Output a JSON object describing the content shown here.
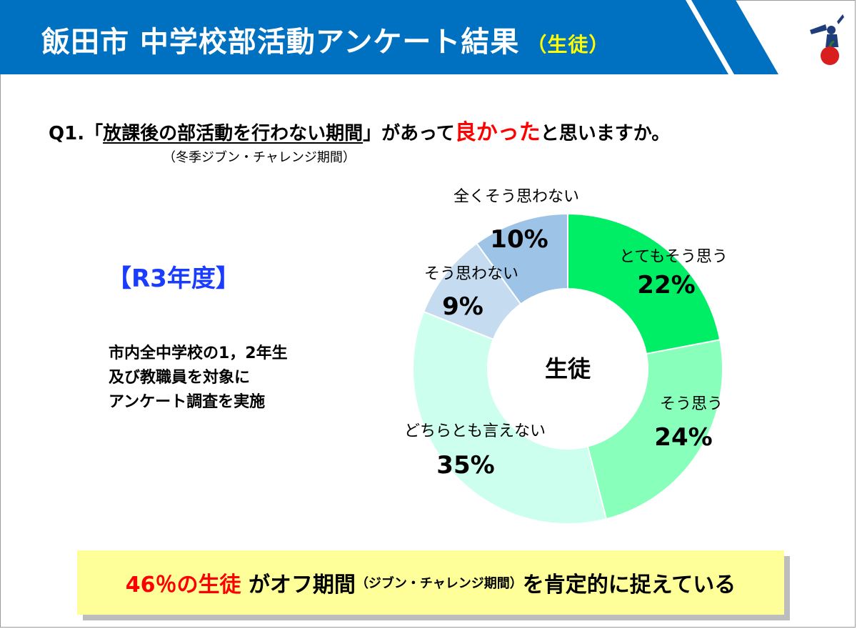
{
  "header": {
    "title": "飯田市 中学校部活動アンケート結果",
    "subtitle": "（生徒）",
    "colors": {
      "band": "#0070c0",
      "stripe": "#0070c0",
      "subtitle": "#ffff00"
    }
  },
  "logo": {
    "icon": "mascot-apple-icon"
  },
  "question": {
    "prefix": "Q1.「",
    "underlined": "放課後の部活動を行わない期間",
    "mid": "」があって",
    "highlight": "良かった",
    "suffix": "と思いますか。",
    "note": "（冬季ジブン・チャレンジ期間）"
  },
  "year_label": "【R3年度】",
  "description": {
    "line1": "市内全中学校の1，2年生",
    "line2": "及び教職員を対象に",
    "line3": "アンケート調査を実施"
  },
  "chart_data": {
    "type": "pie",
    "donut": true,
    "center_label": "生徒",
    "start": "top, clockwise",
    "categories": [
      "とてもそう思う",
      "そう思う",
      "どちらとも言えない",
      "そう思わない",
      "全くそう思わない"
    ],
    "values": [
      22,
      24,
      35,
      9,
      10
    ],
    "value_labels": [
      "22%",
      "24%",
      "35%",
      "9%",
      "10%"
    ],
    "colors": [
      "#00ee66",
      "#88ffbb",
      "#ccffee",
      "#c5dcf0",
      "#9dc3e6"
    ]
  },
  "callout": {
    "highlight": "46％の生徒",
    "text1": "がオフ期間",
    "small": "（ジブン・チャレンジ期間）",
    "text2": "を肯定的に捉えている"
  }
}
